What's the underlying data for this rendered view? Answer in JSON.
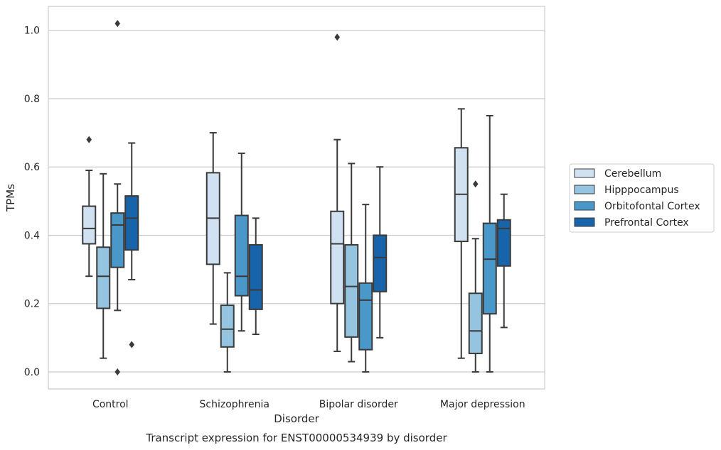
{
  "chart_data": {
    "type": "box",
    "title": "Transcript expression for ENST00000534939 by disorder",
    "xlabel": "Disorder",
    "ylabel": "TPMs",
    "ylim": [
      -0.05,
      1.07
    ],
    "yticks": [
      "0.0",
      "0.2",
      "0.4",
      "0.6",
      "0.8",
      "1.0"
    ],
    "grid": "horizontal",
    "legend_position": "right",
    "categories": [
      "Control",
      "Schizophrenia",
      "Bipolar disorder",
      "Major depression"
    ],
    "series": [
      {
        "name": "Cerebellum",
        "color": "#d0e1f2",
        "boxes": [
          {
            "whislo": 0.28,
            "q1": 0.375,
            "med": 0.42,
            "q3": 0.485,
            "whishi": 0.59,
            "fliers": [
              0.68
            ]
          },
          {
            "whislo": 0.14,
            "q1": 0.315,
            "med": 0.45,
            "q3": 0.583,
            "whishi": 0.7,
            "fliers": []
          },
          {
            "whislo": 0.06,
            "q1": 0.2,
            "med": 0.375,
            "q3": 0.47,
            "whishi": 0.68,
            "fliers": [
              0.98
            ]
          },
          {
            "whislo": 0.04,
            "q1": 0.382,
            "med": 0.52,
            "q3": 0.656,
            "whishi": 0.77,
            "fliers": []
          }
        ]
      },
      {
        "name": "Hipppocampus",
        "color": "#94c4df",
        "boxes": [
          {
            "whislo": 0.04,
            "q1": 0.186,
            "med": 0.28,
            "q3": 0.365,
            "whishi": 0.58,
            "fliers": []
          },
          {
            "whislo": 0.0,
            "q1": 0.073,
            "med": 0.125,
            "q3": 0.195,
            "whishi": 0.29,
            "fliers": []
          },
          {
            "whislo": 0.03,
            "q1": 0.102,
            "med": 0.25,
            "q3": 0.372,
            "whishi": 0.61,
            "fliers": []
          },
          {
            "whislo": 0.0,
            "q1": 0.054,
            "med": 0.12,
            "q3": 0.23,
            "whishi": 0.39,
            "fliers": [
              0.55
            ]
          }
        ]
      },
      {
        "name": "Orbitofontal Cortex",
        "color": "#4a98c9",
        "boxes": [
          {
            "whislo": 0.18,
            "q1": 0.306,
            "med": 0.43,
            "q3": 0.465,
            "whishi": 0.55,
            "fliers": [
              1.02,
              0.0
            ]
          },
          {
            "whislo": 0.12,
            "q1": 0.223,
            "med": 0.28,
            "q3": 0.458,
            "whishi": 0.64,
            "fliers": []
          },
          {
            "whislo": 0.0,
            "q1": 0.065,
            "med": 0.21,
            "q3": 0.26,
            "whishi": 0.49,
            "fliers": []
          },
          {
            "whislo": 0.0,
            "q1": 0.17,
            "med": 0.33,
            "q3": 0.435,
            "whishi": 0.75,
            "fliers": []
          }
        ]
      },
      {
        "name": "Prefrontal Cortex",
        "color": "#1764ab",
        "boxes": [
          {
            "whislo": 0.27,
            "q1": 0.357,
            "med": 0.45,
            "q3": 0.515,
            "whishi": 0.67,
            "fliers": [
              0.08
            ]
          },
          {
            "whislo": 0.11,
            "q1": 0.183,
            "med": 0.24,
            "q3": 0.372,
            "whishi": 0.45,
            "fliers": []
          },
          {
            "whislo": 0.1,
            "q1": 0.235,
            "med": 0.335,
            "q3": 0.4,
            "whishi": 0.6,
            "fliers": []
          },
          {
            "whislo": 0.13,
            "q1": 0.31,
            "med": 0.42,
            "q3": 0.445,
            "whishi": 0.52,
            "fliers": []
          }
        ]
      }
    ]
  }
}
